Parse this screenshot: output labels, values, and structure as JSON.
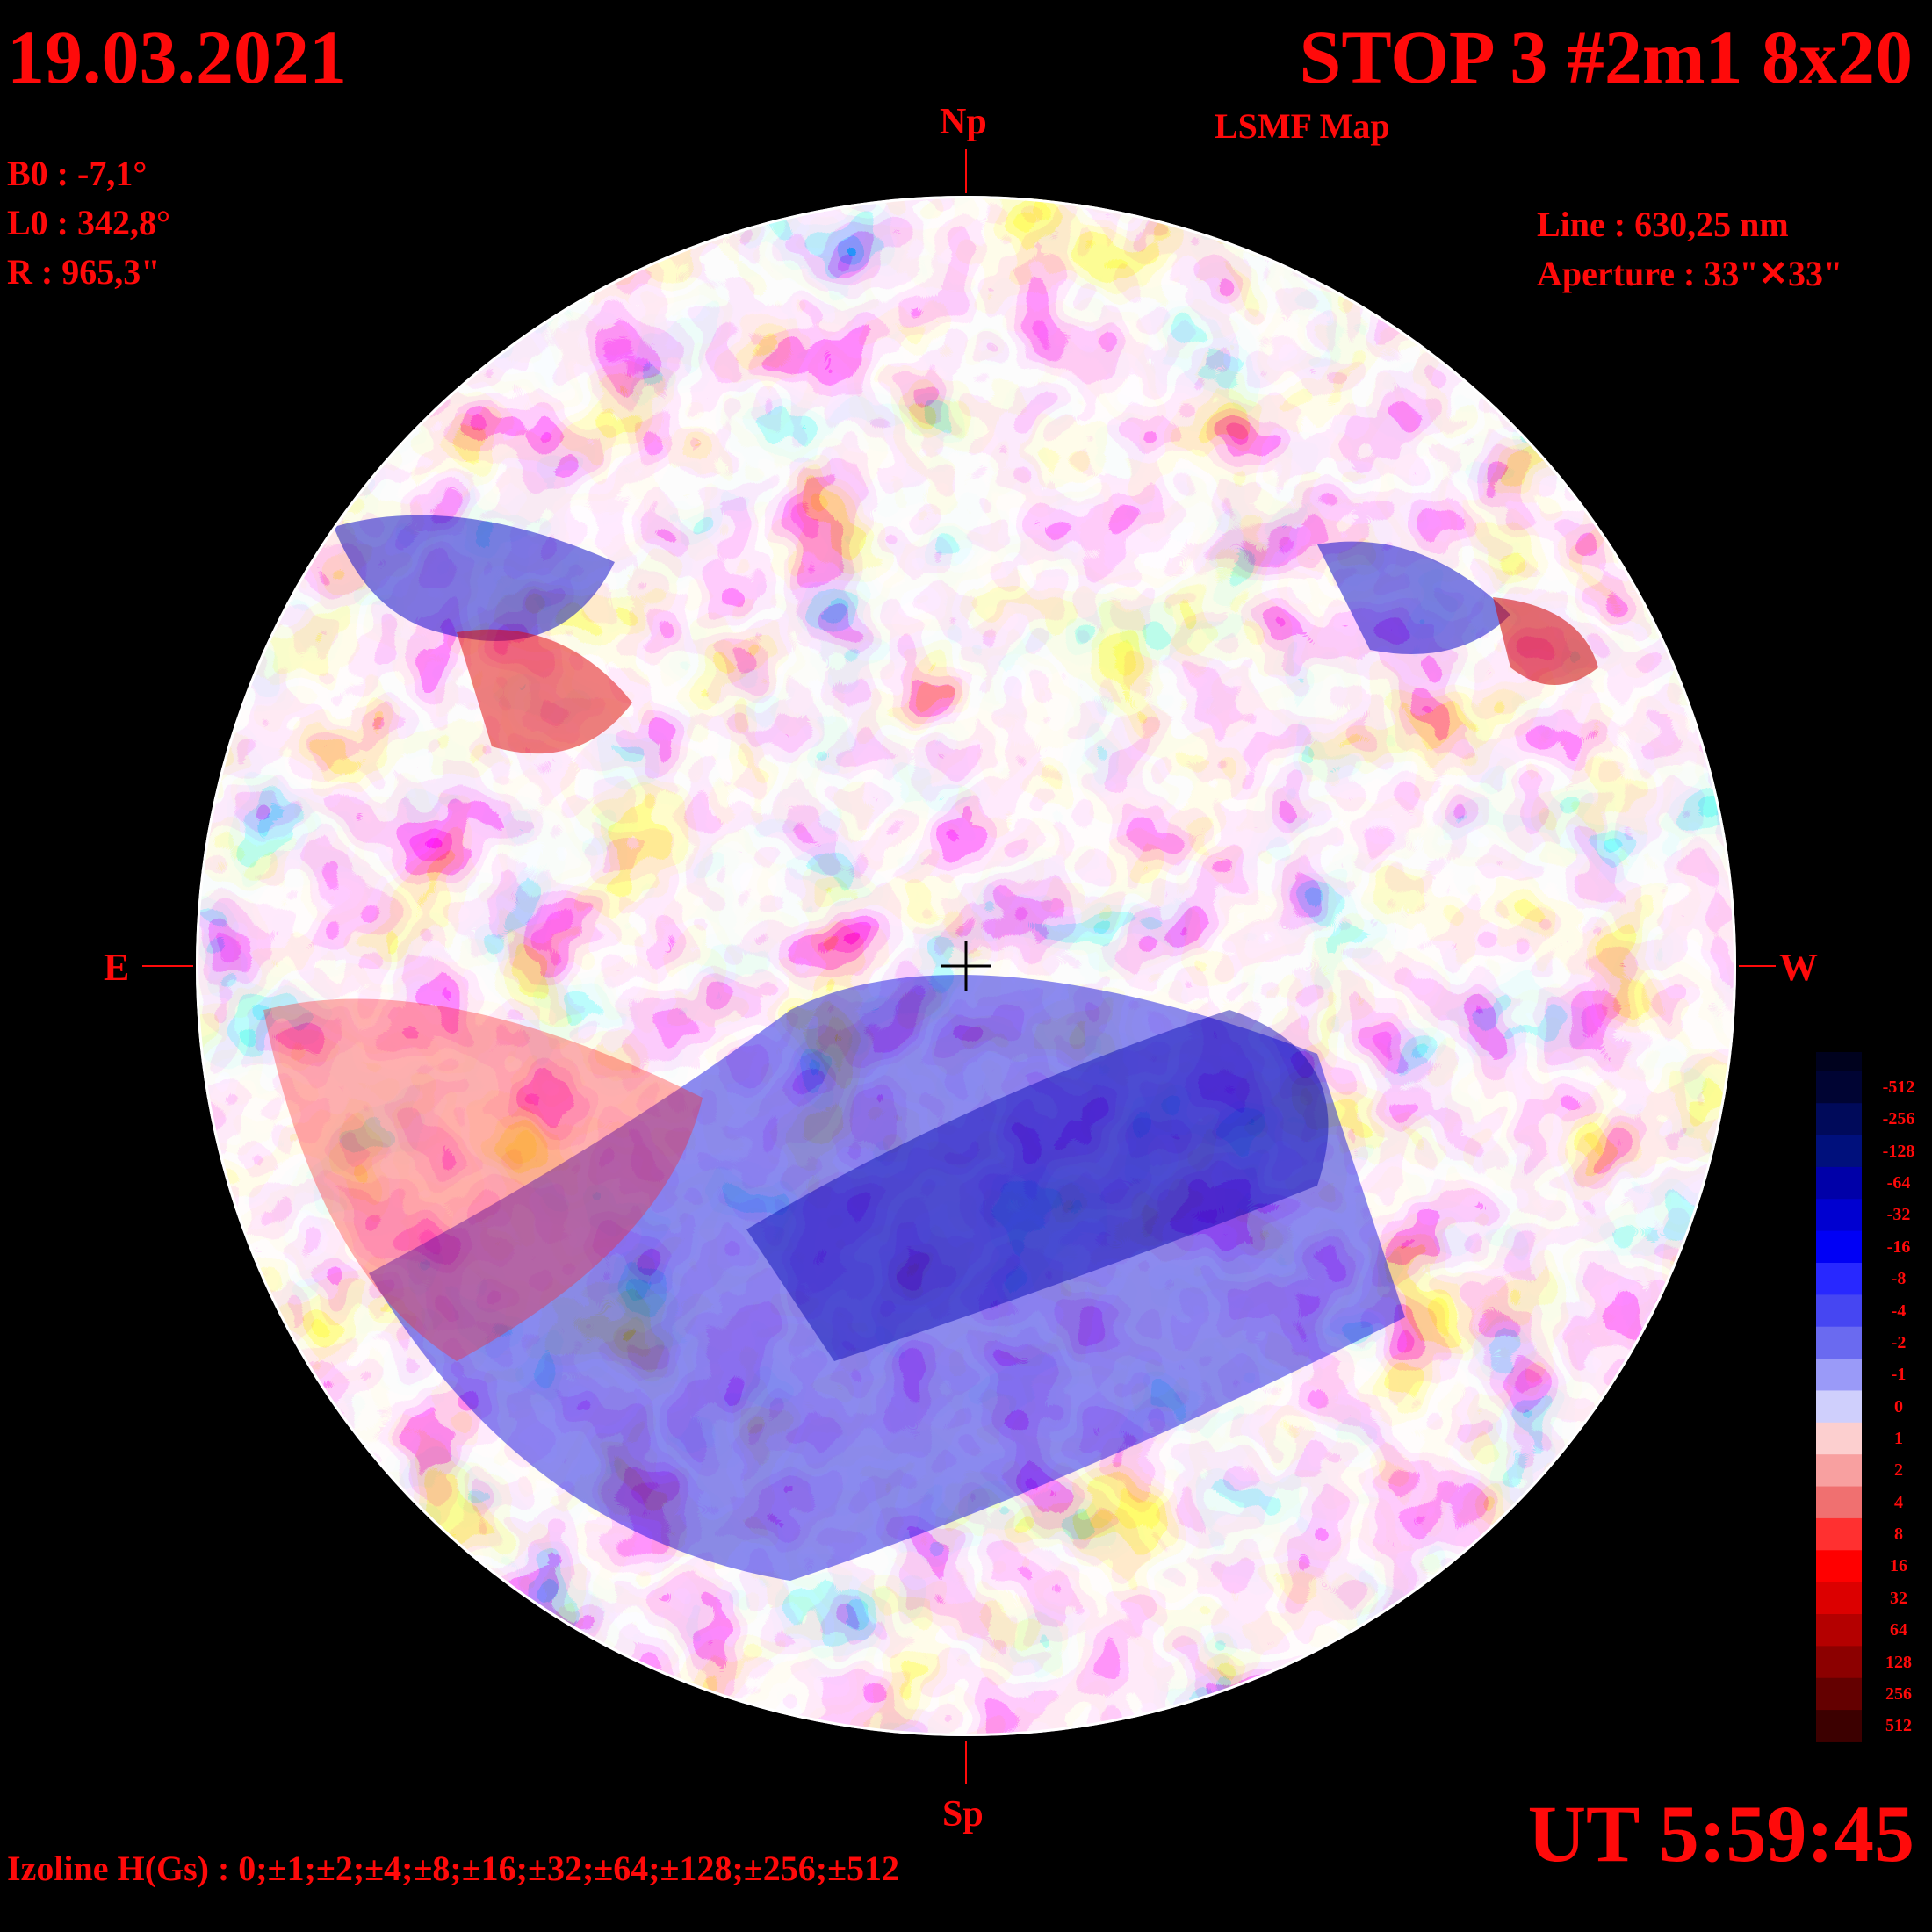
{
  "header": {
    "date": "19.03.2021",
    "title": "STOP 3 #2m1 8x20",
    "subtitle": "LSMF  Map"
  },
  "ephemeris": {
    "b0": "B0 : -7,1°",
    "l0": "L0 : 342,8°",
    "r": "R  : 965,3\""
  },
  "instrument": {
    "line": "Line :  630,25 nm",
    "aperture": "Aperture : 33\"✕33\""
  },
  "orientation": {
    "north": "Np",
    "south": "Sp",
    "east": "E",
    "west": "W"
  },
  "time": "UT 5:59:45",
  "izoline": "Izoline H(Gs) : 0;±1;±2;±4;±8;±16;±32;±64;±128;±256;±512",
  "colorbar": {
    "labels": [
      "-512",
      "-256",
      "-128",
      "-64",
      "-32",
      "-16",
      "-8",
      "-4",
      "-2",
      "-1",
      "0",
      "1",
      "2",
      "4",
      "8",
      "16",
      "32",
      "64",
      "128",
      "256",
      "512"
    ],
    "colors": [
      "#000433",
      "#000a5a",
      "#00107c",
      "#0000a8",
      "#0000d0",
      "#0000f5",
      "#2828ff",
      "#4646f2",
      "#6a6af0",
      "#9a9af8",
      "#cfcffc",
      "#fccfcf",
      "#f8a0a0",
      "#f07070",
      "#ff3030",
      "#ff0000",
      "#dc0000",
      "#b40000",
      "#8c0000",
      "#640000",
      "#3c0000"
    ]
  },
  "colors": {
    "text": "#ff0a0a",
    "background": "#000000"
  }
}
